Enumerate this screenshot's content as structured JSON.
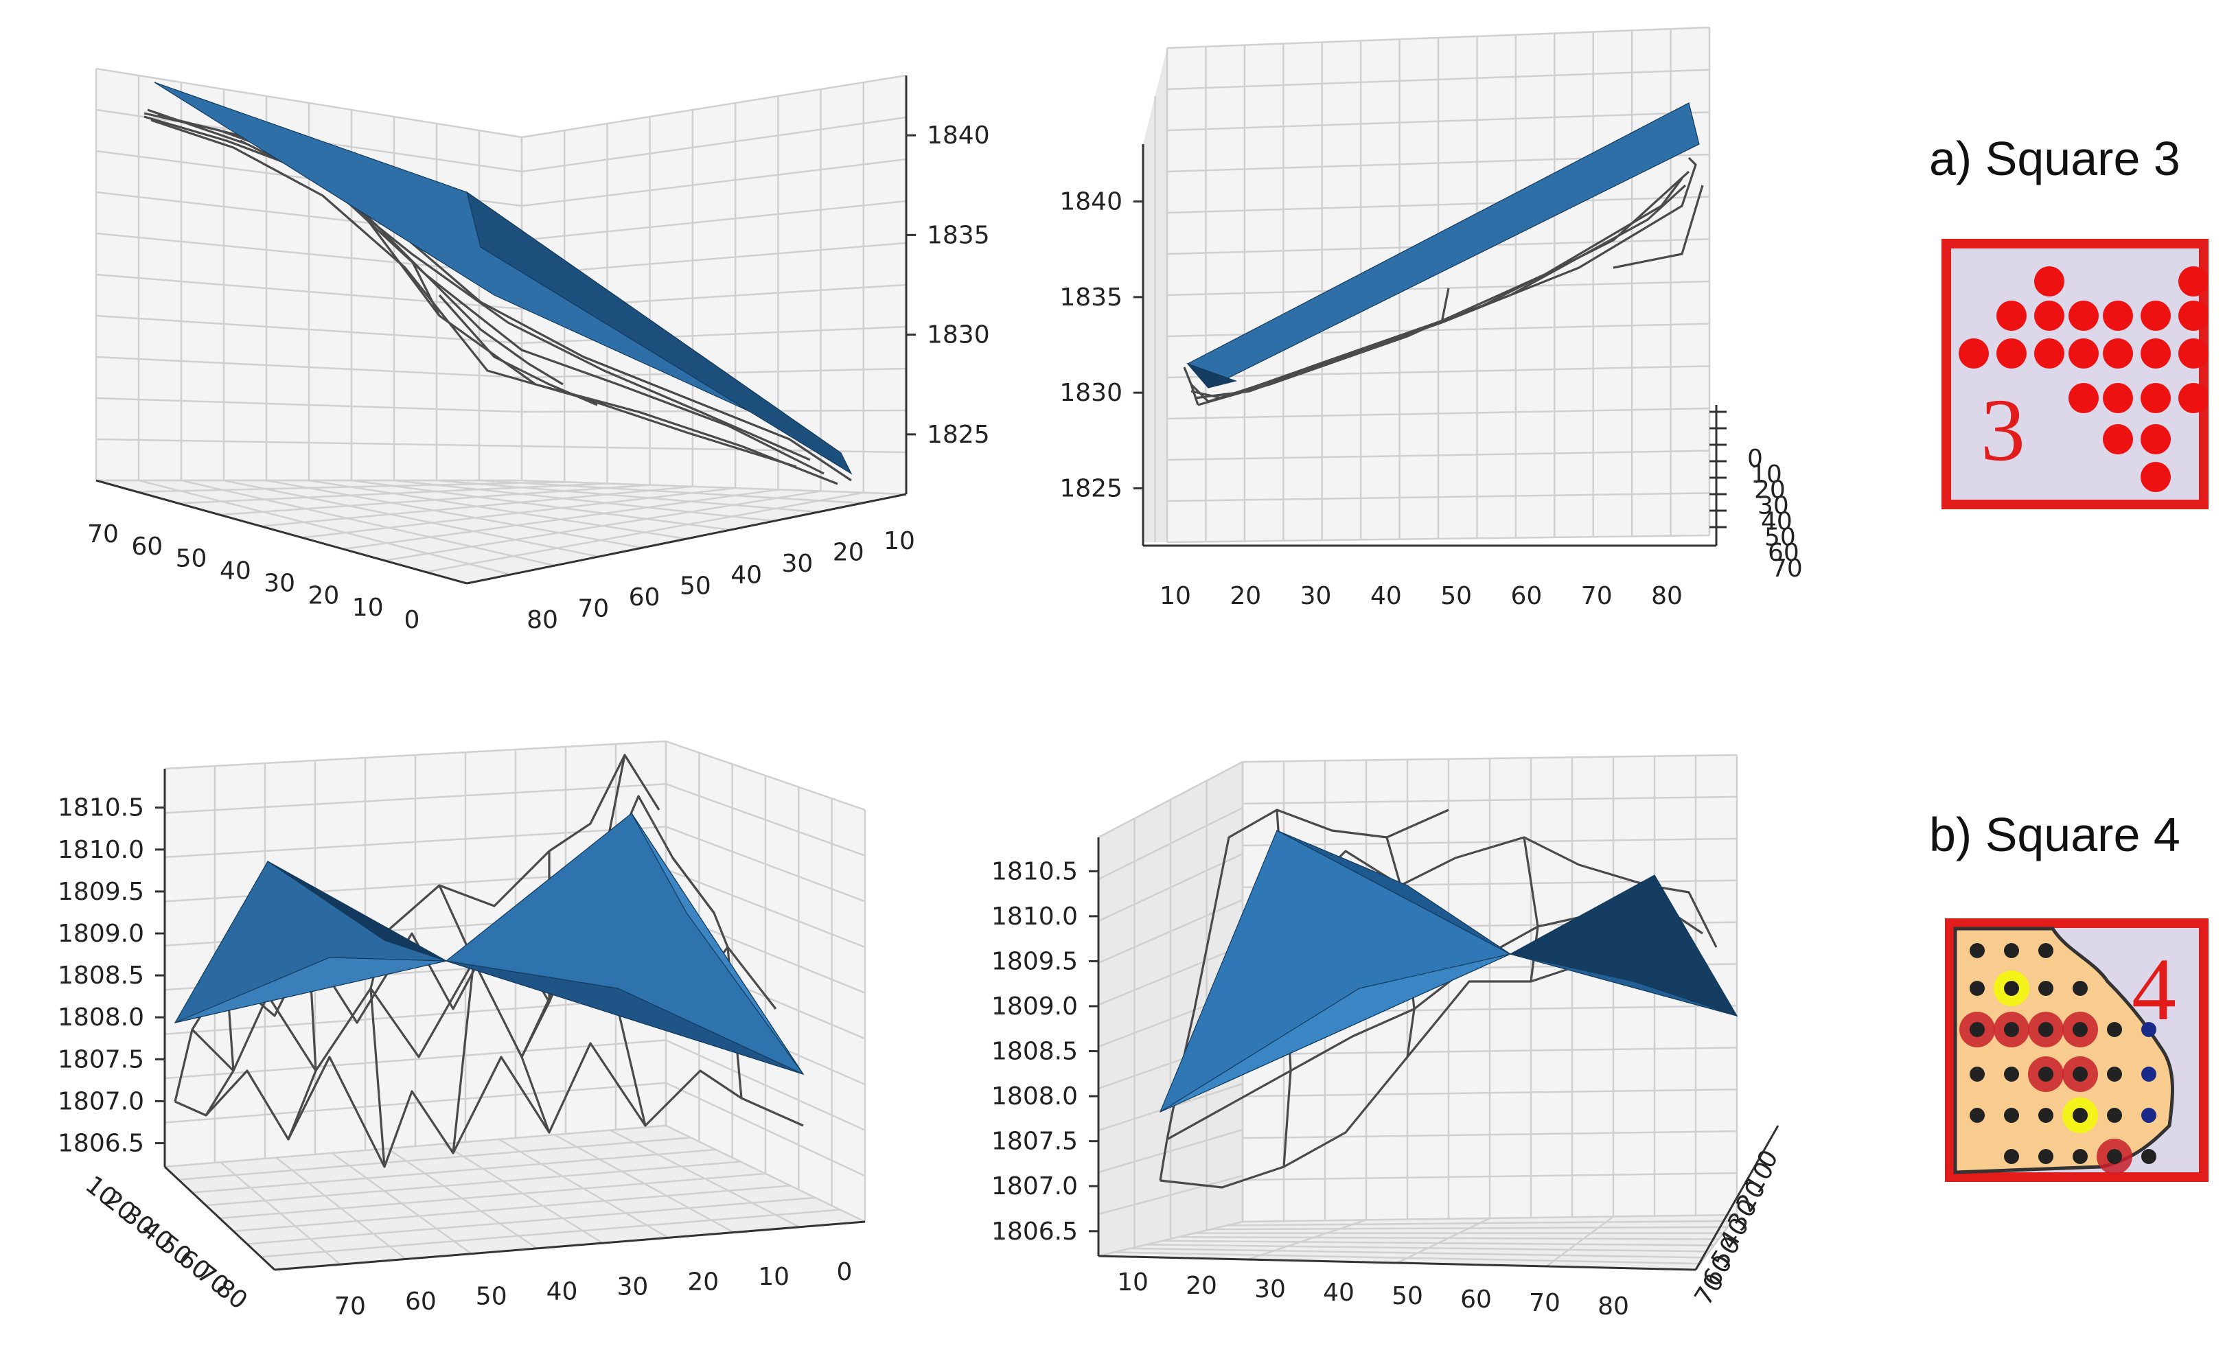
{
  "colors": {
    "surface": "#2e6fa8",
    "surface_dark": "#143d61",
    "wireframe": "#4a4a4a",
    "grid": "#d0d0d0",
    "square_border": "#e21b1b",
    "dot_red": "#ee1111",
    "dot_yellow": "#f4f41a",
    "square4_fill": "#f8cc8e"
  },
  "captions": {
    "square3": "a) Square 3",
    "square4": "b) Square 4"
  },
  "inset_labels": {
    "square3": "3",
    "square4": "4"
  },
  "chart_data": [
    {
      "type": "surface3d",
      "panel": "square3-view1",
      "series": [
        {
          "kind": "fitted-plane"
        },
        {
          "kind": "wireframe"
        }
      ],
      "x_ticks": [
        "80",
        "70",
        "60",
        "50",
        "40",
        "30",
        "20",
        "10"
      ],
      "y_ticks": [
        "70",
        "60",
        "50",
        "40",
        "30",
        "20",
        "10",
        "0"
      ],
      "z_ticks": [
        "1840",
        "1835",
        "1830",
        "1825"
      ],
      "zlim": [
        1822,
        1843
      ]
    },
    {
      "type": "surface3d",
      "panel": "square3-view2",
      "series": [
        {
          "kind": "fitted-plane"
        },
        {
          "kind": "wireframe"
        }
      ],
      "x_ticks": [
        "10",
        "20",
        "30",
        "40",
        "50",
        "60",
        "70",
        "80"
      ],
      "y_ticks": [
        "0",
        "10",
        "20",
        "30",
        "40",
        "50",
        "60",
        "70"
      ],
      "z_ticks": [
        "1840",
        "1835",
        "1830",
        "1825"
      ],
      "zlim": [
        1822,
        1843
      ]
    },
    {
      "type": "surface3d",
      "panel": "square4-view1",
      "series": [
        {
          "kind": "fitted-surface"
        },
        {
          "kind": "wireframe"
        }
      ],
      "x_ticks": [
        "70",
        "60",
        "50",
        "40",
        "30",
        "20",
        "10",
        "0"
      ],
      "y_ticks": [
        "10",
        "20",
        "30",
        "40",
        "50",
        "60",
        "70",
        "80"
      ],
      "z_ticks": [
        "1810.5",
        "1810.0",
        "1809.5",
        "1809.0",
        "1808.5",
        "1808.0",
        "1807.5",
        "1807.0",
        "1806.5"
      ],
      "zlim": [
        1806.3,
        1810.8
      ]
    },
    {
      "type": "surface3d",
      "panel": "square4-view2",
      "series": [
        {
          "kind": "fitted-surface"
        },
        {
          "kind": "wireframe"
        }
      ],
      "x_ticks": [
        "10",
        "20",
        "30",
        "40",
        "50",
        "60",
        "70",
        "80"
      ],
      "y_ticks": [
        "0",
        "10",
        "20",
        "30",
        "40",
        "50",
        "60",
        "70"
      ],
      "z_ticks": [
        "1810.5",
        "1810.0",
        "1809.5",
        "1809.0",
        "1808.5",
        "1808.0",
        "1807.5",
        "1807.0",
        "1806.5"
      ],
      "zlim": [
        1806.3,
        1810.8
      ]
    }
  ]
}
